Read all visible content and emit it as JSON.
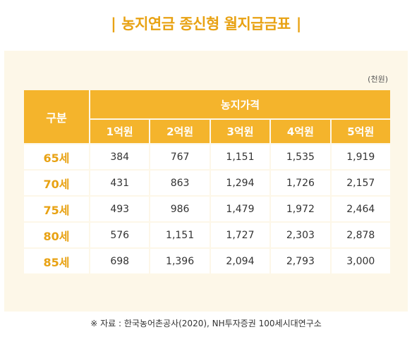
{
  "title": "농지연금 종신형 월지급금표",
  "title_bar_left": "|",
  "title_bar_right": "|",
  "unit": "(천원)",
  "table": {
    "corner_header": "구분",
    "group_header": "농지가격",
    "columns": [
      "1억원",
      "2억원",
      "3억원",
      "4억원",
      "5억원"
    ],
    "rows": [
      {
        "age": "65세",
        "values": [
          "384",
          "767",
          "1,151",
          "1,535",
          "1,919"
        ]
      },
      {
        "age": "70세",
        "values": [
          "431",
          "863",
          "1,294",
          "1,726",
          "2,157"
        ]
      },
      {
        "age": "75세",
        "values": [
          "493",
          "986",
          "1,479",
          "1,972",
          "2,464"
        ]
      },
      {
        "age": "80세",
        "values": [
          "576",
          "1,151",
          "1,727",
          "2,303",
          "2,878"
        ]
      },
      {
        "age": "85세",
        "values": [
          "698",
          "1,396",
          "2,094",
          "2,793",
          "3,000"
        ]
      }
    ]
  },
  "source": "※ 자료 : 한국농어촌공사(2020), NH투자증권 100세시대연구소",
  "colors": {
    "accent": "#f4b42c",
    "title": "#e8a213",
    "panel": "#fdf7e8"
  }
}
